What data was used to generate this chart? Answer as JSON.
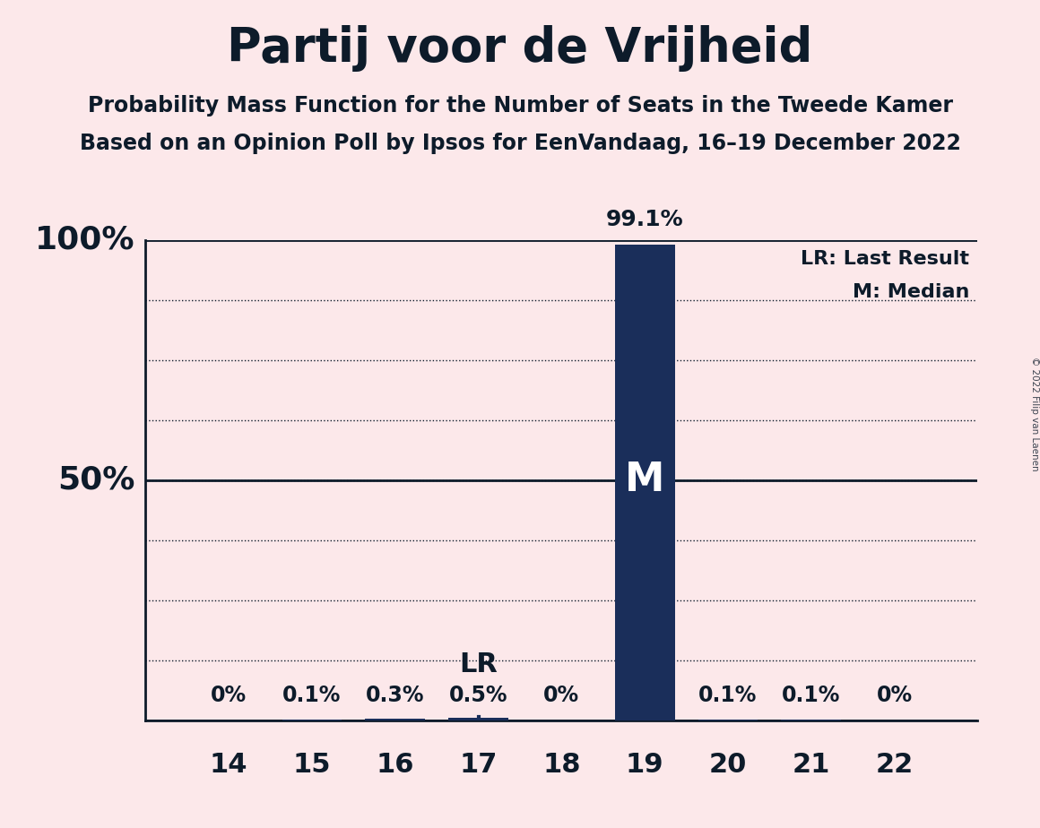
{
  "title": "Partij voor de Vrijheid",
  "subtitle1": "Probability Mass Function for the Number of Seats in the Tweede Kamer",
  "subtitle2": "Based on an Opinion Poll by Ipsos for EenVandaag, 16–19 December 2022",
  "watermark": "© 2022 Filip van Laenen",
  "seats": [
    14,
    15,
    16,
    17,
    18,
    19,
    20,
    21,
    22
  ],
  "probabilities": [
    0.0,
    0.001,
    0.003,
    0.005,
    0.0,
    0.991,
    0.001,
    0.001,
    0.0
  ],
  "prob_labels": [
    "0%",
    "0.1%",
    "0.3%",
    "0.5%",
    "0%",
    "",
    "0.1%",
    "0.1%",
    "0%"
  ],
  "last_result": 17,
  "median": 19,
  "bar_color": "#1a2e5a",
  "background_color": "#fce8ea",
  "text_color": "#0d1b2a",
  "legend_lr": "LR: Last Result",
  "legend_m": "M: Median",
  "ylim": [
    0,
    1.0
  ],
  "grid_color": "#0d1b2a",
  "lr_line_color": "#1a2e5a",
  "n_grid_lines": 8,
  "prob_label_fontsize": 17,
  "xtick_fontsize": 22,
  "ytick_fontsize": 26,
  "legend_fontsize": 16,
  "bar_width": 0.72
}
